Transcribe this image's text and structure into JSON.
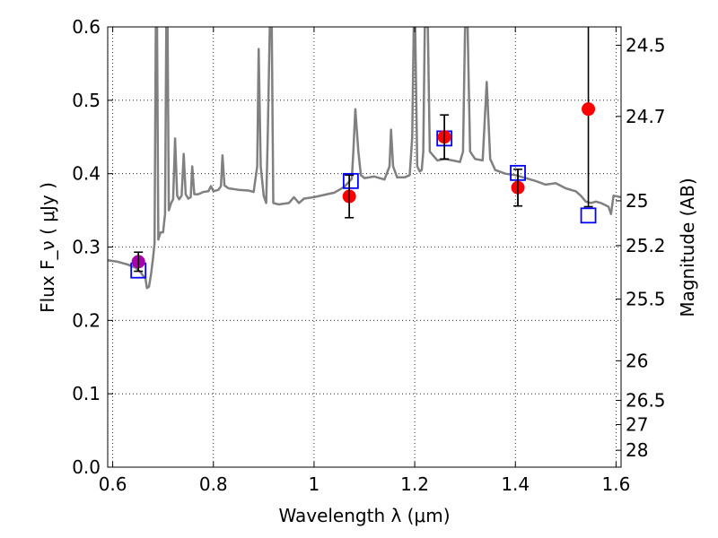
{
  "chart_data": {
    "type": "line",
    "title": "",
    "xlabel": "Wavelength  λ (μm)",
    "ylabel": "Flux  F_ν  ( μJy )",
    "ylabel_right": "Magnitude (AB)",
    "xlim": [
      0.59,
      1.61
    ],
    "ylim": [
      0.0,
      0.6
    ],
    "x_ticks": [
      0.6,
      0.8,
      1.0,
      1.2,
      1.4,
      1.6
    ],
    "x_tick_labels": [
      "0.6",
      "0.8",
      "1",
      "1.2",
      "1.4",
      "1.6"
    ],
    "y_ticks": [
      0.0,
      0.1,
      0.2,
      0.3,
      0.4,
      0.5,
      0.6
    ],
    "y_tick_labels": [
      "0.0",
      "0.1",
      "0.2",
      "0.3",
      "0.4",
      "0.5",
      "0.6"
    ],
    "right_axis_ticks": [
      {
        "flux": 0.575,
        "label": "24.5"
      },
      {
        "flux": 0.478,
        "label": "24.7"
      },
      {
        "flux": 0.363,
        "label": "25"
      },
      {
        "flux": 0.302,
        "label": "25.2"
      },
      {
        "flux": 0.229,
        "label": "25.5"
      },
      {
        "flux": 0.145,
        "label": "26"
      },
      {
        "flux": 0.091,
        "label": "26.5"
      },
      {
        "flux": 0.058,
        "label": "27"
      },
      {
        "flux": 0.023,
        "label": "28"
      }
    ],
    "grid": true,
    "grid_style": "dotted",
    "colors": {
      "model": "#808080",
      "observed": "#ff0000",
      "observed_optical": "#aa00aa",
      "model_band": "#0000ff",
      "error_bar": "#000000"
    },
    "series": [
      {
        "kind": "model-spectrum",
        "points": [
          [
            0.59,
            0.282
          ],
          [
            0.61,
            0.28
          ],
          [
            0.63,
            0.276
          ],
          [
            0.645,
            0.272
          ],
          [
            0.655,
            0.266
          ],
          [
            0.66,
            0.261
          ],
          [
            0.665,
            0.257
          ],
          [
            0.668,
            0.244
          ],
          [
            0.672,
            0.246
          ],
          [
            0.676,
            0.262
          ],
          [
            0.68,
            0.285
          ],
          [
            0.683,
            0.305
          ],
          [
            0.6855,
            0.6
          ],
          [
            0.688,
            0.6
          ],
          [
            0.6905,
            0.31
          ],
          [
            0.695,
            0.32
          ],
          [
            0.7,
            0.32
          ],
          [
            0.704,
            0.345
          ],
          [
            0.7065,
            0.6
          ],
          [
            0.709,
            0.6
          ],
          [
            0.7115,
            0.35
          ],
          [
            0.716,
            0.36
          ],
          [
            0.72,
            0.365
          ],
          [
            0.724,
            0.448
          ],
          [
            0.728,
            0.37
          ],
          [
            0.732,
            0.365
          ],
          [
            0.737,
            0.37
          ],
          [
            0.741,
            0.427
          ],
          [
            0.745,
            0.372
          ],
          [
            0.75,
            0.366
          ],
          [
            0.755,
            0.368
          ],
          [
            0.758,
            0.41
          ],
          [
            0.762,
            0.372
          ],
          [
            0.77,
            0.372
          ],
          [
            0.78,
            0.375
          ],
          [
            0.79,
            0.376
          ],
          [
            0.795,
            0.383
          ],
          [
            0.8,
            0.376
          ],
          [
            0.81,
            0.378
          ],
          [
            0.815,
            0.383
          ],
          [
            0.818,
            0.425
          ],
          [
            0.822,
            0.384
          ],
          [
            0.83,
            0.38
          ],
          [
            0.85,
            0.378
          ],
          [
            0.87,
            0.377
          ],
          [
            0.88,
            0.375
          ],
          [
            0.887,
            0.41
          ],
          [
            0.89,
            0.57
          ],
          [
            0.894,
            0.41
          ],
          [
            0.9,
            0.37
          ],
          [
            0.905,
            0.36
          ],
          [
            0.908,
            0.45
          ],
          [
            0.912,
            0.6
          ],
          [
            0.916,
            0.6
          ],
          [
            0.919,
            0.36
          ],
          [
            0.93,
            0.358
          ],
          [
            0.95,
            0.36
          ],
          [
            0.96,
            0.368
          ],
          [
            0.97,
            0.36
          ],
          [
            0.98,
            0.366
          ],
          [
            1.0,
            0.368
          ],
          [
            1.02,
            0.371
          ],
          [
            1.04,
            0.374
          ],
          [
            1.06,
            0.382
          ],
          [
            1.075,
            0.393
          ],
          [
            1.078,
            0.43
          ],
          [
            1.082,
            0.488
          ],
          [
            1.088,
            0.43
          ],
          [
            1.093,
            0.398
          ],
          [
            1.1,
            0.394
          ],
          [
            1.12,
            0.396
          ],
          [
            1.14,
            0.392
          ],
          [
            1.15,
            0.41
          ],
          [
            1.153,
            0.46
          ],
          [
            1.157,
            0.41
          ],
          [
            1.165,
            0.395
          ],
          [
            1.18,
            0.395
          ],
          [
            1.19,
            0.398
          ],
          [
            1.195,
            0.45
          ],
          [
            1.198,
            0.6
          ],
          [
            1.201,
            0.6
          ],
          [
            1.205,
            0.41
          ],
          [
            1.21,
            0.403
          ],
          [
            1.214,
            0.405
          ],
          [
            1.217,
            0.43
          ],
          [
            1.22,
            0.6
          ],
          [
            1.226,
            0.6
          ],
          [
            1.23,
            0.43
          ],
          [
            1.245,
            0.418
          ],
          [
            1.26,
            0.42
          ],
          [
            1.275,
            0.418
          ],
          [
            1.29,
            0.416
          ],
          [
            1.296,
            0.43
          ],
          [
            1.3,
            0.6
          ],
          [
            1.305,
            0.6
          ],
          [
            1.31,
            0.43
          ],
          [
            1.32,
            0.42
          ],
          [
            1.335,
            0.418
          ],
          [
            1.343,
            0.525
          ],
          [
            1.35,
            0.42
          ],
          [
            1.36,
            0.405
          ],
          [
            1.38,
            0.4
          ],
          [
            1.4,
            0.398
          ],
          [
            1.42,
            0.394
          ],
          [
            1.44,
            0.39
          ],
          [
            1.46,
            0.385
          ],
          [
            1.48,
            0.387
          ],
          [
            1.5,
            0.38
          ],
          [
            1.52,
            0.376
          ],
          [
            1.53,
            0.37
          ],
          [
            1.54,
            0.362
          ],
          [
            1.55,
            0.36
          ],
          [
            1.56,
            0.362
          ],
          [
            1.57,
            0.36
          ],
          [
            1.585,
            0.355
          ],
          [
            1.59,
            0.345
          ],
          [
            1.595,
            0.37
          ],
          [
            1.61,
            0.368
          ]
        ]
      },
      {
        "kind": "model-band-flux",
        "points": [
          {
            "x": 0.651,
            "y": 0.268
          },
          {
            "x": 1.073,
            "y": 0.39
          },
          {
            "x": 1.259,
            "y": 0.448
          },
          {
            "x": 1.405,
            "y": 0.401
          },
          {
            "x": 1.545,
            "y": 0.343
          }
        ]
      },
      {
        "kind": "observed-photometry",
        "points": [
          {
            "x": 0.651,
            "y": 0.28,
            "err": 0.013,
            "color": "#aa00aa"
          },
          {
            "x": 1.07,
            "y": 0.369,
            "err": 0.029,
            "color": "#ff0000"
          },
          {
            "x": 1.259,
            "y": 0.45,
            "err": 0.03,
            "color": "#ff0000"
          },
          {
            "x": 1.405,
            "y": 0.381,
            "err": 0.025,
            "color": "#ff0000"
          },
          {
            "x": 1.545,
            "y": 0.488,
            "upper": 0.6,
            "lower": 0.355,
            "color": "#ff0000"
          }
        ]
      }
    ]
  }
}
